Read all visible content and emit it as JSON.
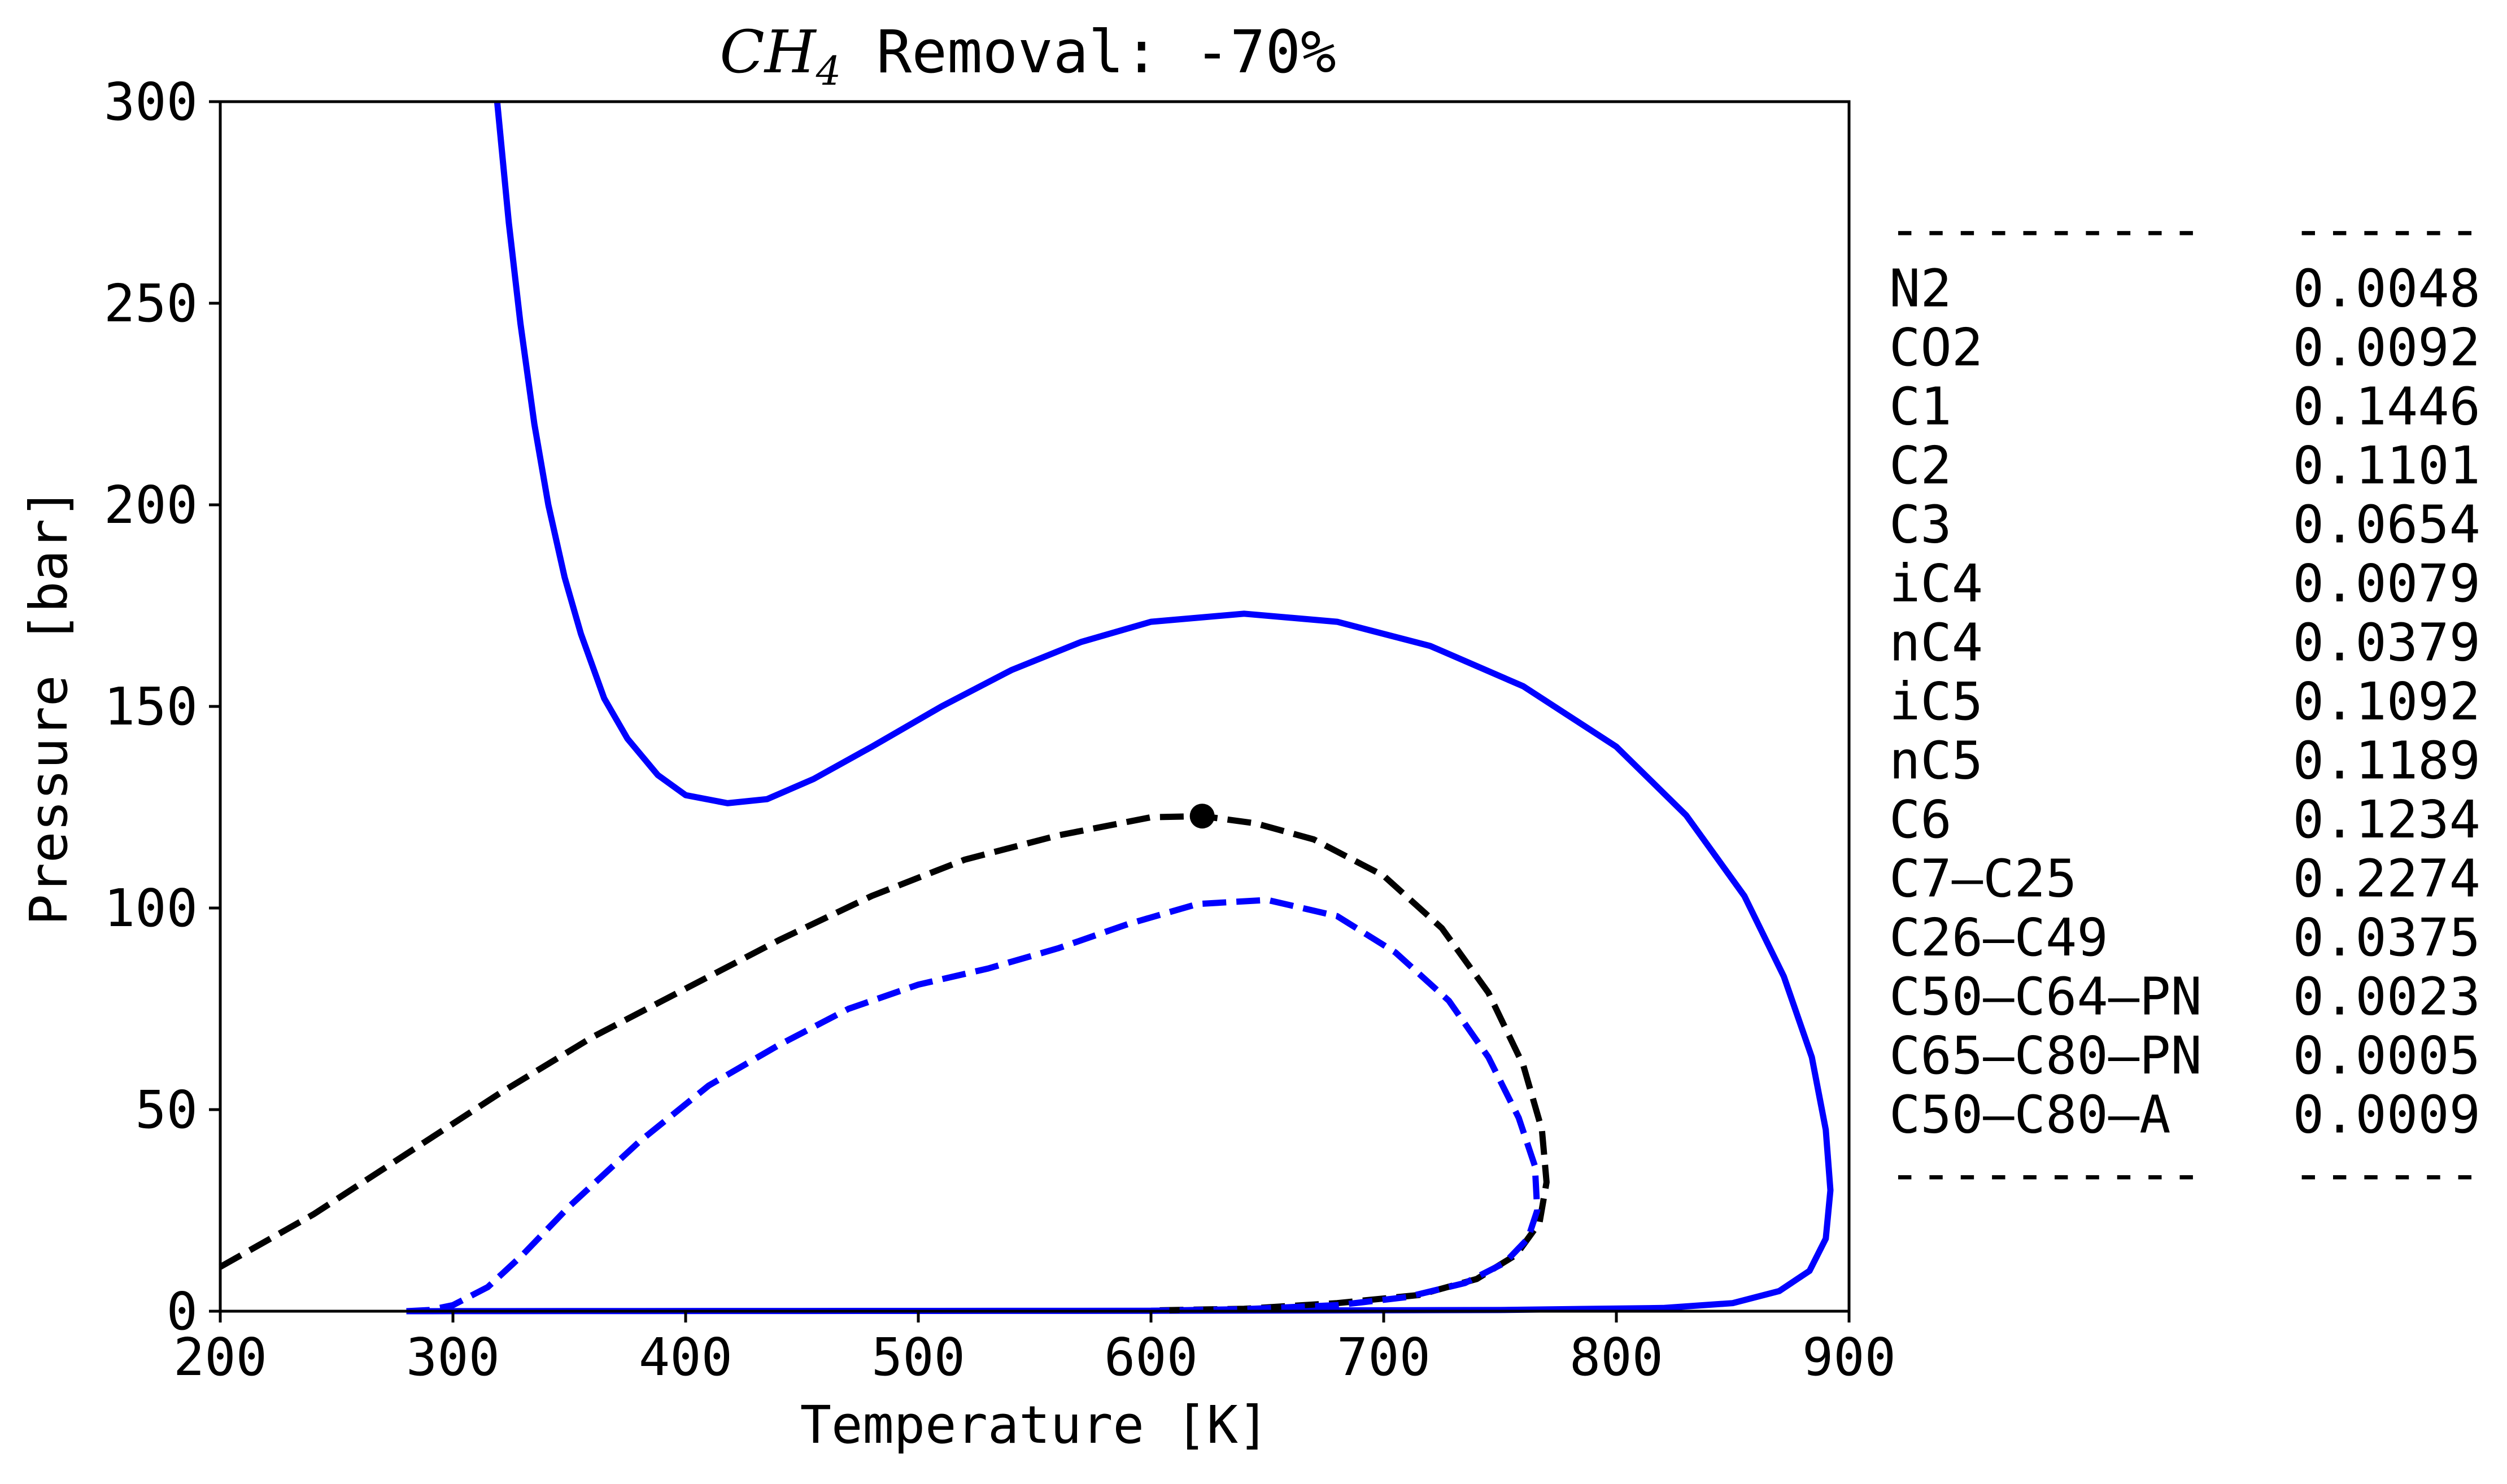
{
  "chart_data": {
    "type": "line",
    "title": {
      "species_main": "CH",
      "species_sub": "4",
      "rest": " Removal: -70%"
    },
    "xlabel": "Temperature [K]",
    "ylabel": "Pressure [bar]",
    "xlim": [
      200,
      900
    ],
    "ylim": [
      0,
      300
    ],
    "xticks": [
      200,
      300,
      400,
      500,
      600,
      700,
      800,
      900
    ],
    "yticks": [
      0,
      50,
      100,
      150,
      200,
      250,
      300
    ],
    "grid": false,
    "series": [
      {
        "color": "#0000ff",
        "style": "solid",
        "points": [
          [
            319,
            300
          ],
          [
            324,
            270
          ],
          [
            329,
            245
          ],
          [
            335,
            220
          ],
          [
            341,
            200
          ],
          [
            348,
            182
          ],
          [
            355,
            168
          ],
          [
            365,
            152
          ],
          [
            375,
            142
          ],
          [
            388,
            133
          ],
          [
            400,
            128
          ],
          [
            418,
            126
          ],
          [
            435,
            127
          ],
          [
            455,
            132
          ],
          [
            480,
            140
          ],
          [
            510,
            150
          ],
          [
            540,
            159
          ],
          [
            570,
            166
          ],
          [
            600,
            171
          ],
          [
            640,
            173
          ],
          [
            680,
            171
          ],
          [
            720,
            165
          ],
          [
            760,
            155
          ],
          [
            800,
            140
          ],
          [
            830,
            123
          ],
          [
            855,
            103
          ],
          [
            872,
            83
          ],
          [
            884,
            63
          ],
          [
            890,
            45
          ],
          [
            892,
            30
          ],
          [
            890,
            18
          ],
          [
            883,
            10
          ],
          [
            870,
            5
          ],
          [
            850,
            2
          ],
          [
            820,
            0.8
          ],
          [
            750,
            0.3
          ],
          [
            600,
            0.1
          ],
          [
            450,
            0.05
          ],
          [
            300,
            0.02
          ],
          [
            280,
            0.0
          ]
        ]
      },
      {
        "color": "#000000",
        "style": "dashed",
        "points": [
          [
            200,
            11
          ],
          [
            240,
            24
          ],
          [
            280,
            39
          ],
          [
            320,
            54
          ],
          [
            360,
            68
          ],
          [
            400,
            80
          ],
          [
            440,
            92
          ],
          [
            480,
            103
          ],
          [
            520,
            112
          ],
          [
            560,
            118
          ],
          [
            600,
            122.5
          ],
          [
            622,
            122.8
          ],
          [
            645,
            121
          ],
          [
            670,
            117
          ],
          [
            700,
            108
          ],
          [
            725,
            95
          ],
          [
            745,
            79
          ],
          [
            760,
            61
          ],
          [
            768,
            45
          ],
          [
            770,
            32
          ],
          [
            767,
            22
          ],
          [
            757,
            14
          ],
          [
            740,
            8
          ],
          [
            715,
            4
          ],
          [
            680,
            2
          ],
          [
            640,
            0.6
          ],
          [
            600,
            0.2
          ]
        ]
      },
      {
        "color": "#0000ff",
        "style": "dashed",
        "points": [
          [
            280,
            0
          ],
          [
            290,
            0.3
          ],
          [
            300,
            1.5
          ],
          [
            315,
            6
          ],
          [
            330,
            14
          ],
          [
            350,
            26
          ],
          [
            380,
            42
          ],
          [
            410,
            56
          ],
          [
            440,
            66
          ],
          [
            470,
            75
          ],
          [
            500,
            81
          ],
          [
            530,
            85
          ],
          [
            560,
            90
          ],
          [
            590,
            96
          ],
          [
            620,
            101
          ],
          [
            650,
            102
          ],
          [
            680,
            98
          ],
          [
            705,
            89
          ],
          [
            728,
            77
          ],
          [
            745,
            63
          ],
          [
            758,
            48
          ],
          [
            765,
            36
          ],
          [
            766,
            25
          ],
          [
            762,
            18
          ],
          [
            752,
            12
          ],
          [
            735,
            7
          ],
          [
            710,
            3.5
          ],
          [
            680,
            1.5
          ],
          [
            640,
            0.5
          ],
          [
            600,
            0.1
          ]
        ]
      }
    ],
    "critical_point": {
      "x": 622,
      "y": 122.8,
      "color": "#000000"
    },
    "composition_table": {
      "separator_name": "----------",
      "separator_value": "------",
      "rows": [
        {
          "name": "N2",
          "value": "0.0048"
        },
        {
          "name": "CO2",
          "value": "0.0092"
        },
        {
          "name": "C1",
          "value": "0.1446"
        },
        {
          "name": "C2",
          "value": "0.1101"
        },
        {
          "name": "C3",
          "value": "0.0654"
        },
        {
          "name": "iC4",
          "value": "0.0079"
        },
        {
          "name": "nC4",
          "value": "0.0379"
        },
        {
          "name": "iC5",
          "value": "0.1092"
        },
        {
          "name": "nC5",
          "value": "0.1189"
        },
        {
          "name": "C6",
          "value": "0.1234"
        },
        {
          "name": "C7–C25",
          "value": "0.2274"
        },
        {
          "name": "C26–C49",
          "value": "0.0375"
        },
        {
          "name": "C50–C64–PN",
          "value": "0.0023"
        },
        {
          "name": "C65–C80–PN",
          "value": "0.0005"
        },
        {
          "name": "C50–C80–A",
          "value": "0.0009"
        }
      ]
    }
  }
}
